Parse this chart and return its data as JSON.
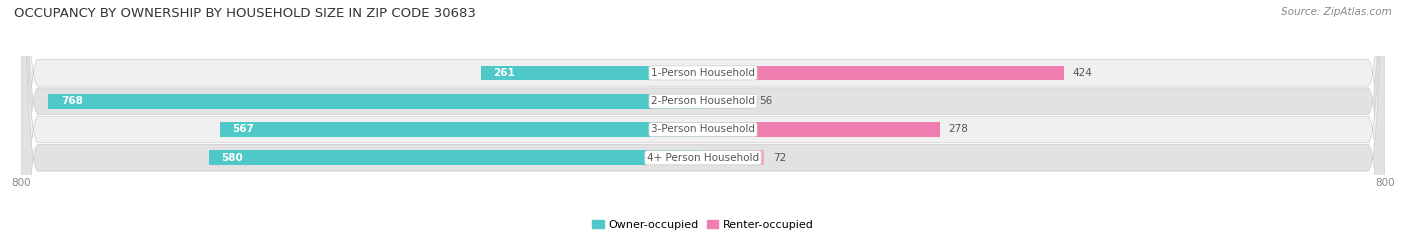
{
  "title": "OCCUPANCY BY OWNERSHIP BY HOUSEHOLD SIZE IN ZIP CODE 30683",
  "source": "Source: ZipAtlas.com",
  "categories": [
    "1-Person Household",
    "2-Person Household",
    "3-Person Household",
    "4+ Person Household"
  ],
  "owner_values": [
    261,
    768,
    567,
    580
  ],
  "renter_values": [
    424,
    56,
    278,
    72
  ],
  "owner_color": "#4EC8C8",
  "renter_color": "#F07DAF",
  "renter_color_light": "#F5A8C8",
  "owner_label": "Owner-occupied",
  "renter_label": "Renter-occupied",
  "axis_max": 800,
  "bar_height": 0.52,
  "background_color": "#ffffff",
  "row_bg_light": "#f5f5f5",
  "row_bg_dark": "#e8e8e8",
  "title_fontsize": 9.5,
  "source_fontsize": 7.5,
  "value_fontsize": 7.5,
  "cat_fontsize": 7.5,
  "tick_fontsize": 7.5,
  "legend_fontsize": 8
}
